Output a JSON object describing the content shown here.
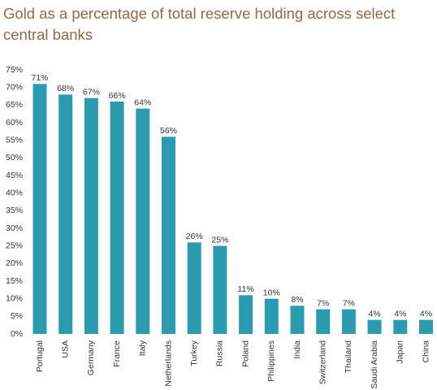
{
  "chart_data": {
    "type": "bar",
    "title": [
      "Gold as a percentage of total reserve holding across select",
      "central banks"
    ],
    "categories": [
      "Portugal",
      "USA",
      "Germany",
      "France",
      "Italy",
      "Netherlands",
      "Turkey",
      "Russia",
      "Poland",
      "Philippines",
      "India",
      "Switzerland",
      "Thailand",
      "Saudi Arabia",
      "Japan",
      "China"
    ],
    "values": [
      71,
      68,
      67,
      66,
      64,
      56,
      26,
      25,
      11,
      10,
      8,
      7,
      7,
      4,
      4,
      4
    ],
    "value_labels": [
      "71%",
      "68%",
      "67%",
      "66%",
      "64%",
      "56%",
      "26%",
      "25%",
      "11%",
      "10%",
      "8%",
      "7%",
      "7%",
      "4%",
      "4%",
      "4%"
    ],
    "color": "#2b9cb0",
    "ylim": [
      0,
      75
    ],
    "yticks": [
      {
        "value": 0,
        "label": "0%"
      },
      {
        "value": 5,
        "label": "5%"
      },
      {
        "value": 10,
        "label": "10%"
      },
      {
        "value": 15,
        "label": "15%"
      },
      {
        "value": 20,
        "label": "20%"
      },
      {
        "value": 25,
        "label": "25%"
      },
      {
        "value": 30,
        "label": "30%"
      },
      {
        "value": 35,
        "label": "35%"
      },
      {
        "value": 40,
        "label": "40%"
      },
      {
        "value": 45,
        "label": "45%"
      },
      {
        "value": 50,
        "label": "50%"
      },
      {
        "value": 55,
        "label": "55%"
      },
      {
        "value": 60,
        "label": "60%"
      },
      {
        "value": 65,
        "label": "65%"
      },
      {
        "value": 70,
        "label": "70%"
      },
      {
        "value": 75,
        "label": "75%"
      }
    ],
    "grid": false
  }
}
